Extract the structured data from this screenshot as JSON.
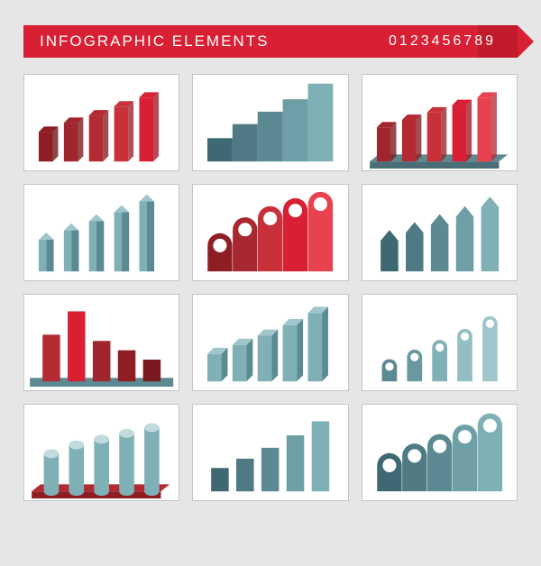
{
  "header": {
    "title": "INFOGRAPHIC ELEMENTS",
    "digits": "0123456789",
    "ribbon_color": "#d91f33"
  },
  "background_color": "#e6e6e6",
  "panel_border": "#c4c4c4",
  "palette": {
    "red_dark": "#8f1d24",
    "red_mid": "#b42a32",
    "red": "#d91f33",
    "red_light": "#e8424f",
    "teal_dark": "#3e6872",
    "teal_mid": "#5b8a92",
    "teal": "#7fb0b6",
    "teal_light": "#a0c6cb",
    "teal_pale": "#c0dade"
  },
  "panels": [
    {
      "id": "p1",
      "type": "bar-3d-red",
      "values": [
        40,
        52,
        62,
        74,
        86
      ],
      "colors": [
        "#8f1d24",
        "#a0252c",
        "#b42a32",
        "#c9313a",
        "#d91f33"
      ],
      "side_tint": "rgba(0,0,0,0.18)"
    },
    {
      "id": "p2",
      "type": "bar-stairs",
      "values": [
        30,
        48,
        64,
        80,
        100
      ],
      "colors": [
        "#3e6872",
        "#4f7a83",
        "#5b8a92",
        "#6f9fa6",
        "#7fb0b6"
      ]
    },
    {
      "id": "p3",
      "type": "bar-3d-red-platform",
      "values": [
        46,
        56,
        66,
        76,
        86
      ],
      "colors": [
        "#a0252c",
        "#b42a32",
        "#c9313a",
        "#d91f33",
        "#e8424f"
      ],
      "platform_color": "#5b8a92"
    },
    {
      "id": "p4",
      "type": "bar-prism-teal",
      "values": [
        42,
        54,
        66,
        78,
        92
      ],
      "front": "#7fb0b6",
      "side": "#5b8a92",
      "top": "#a0c6cb"
    },
    {
      "id": "p5",
      "type": "pin-arch",
      "values": [
        48,
        68,
        82,
        92,
        100
      ],
      "colors": [
        "#8f1d24",
        "#a72830",
        "#c9313a",
        "#d91f33",
        "#e8424f"
      ],
      "circle_fill": "#ffffff"
    },
    {
      "id": "p6",
      "type": "bar-arrow-teal",
      "values": [
        52,
        62,
        72,
        82,
        94
      ],
      "colors": [
        "#3e6872",
        "#4f7a83",
        "#5b8a92",
        "#6f9fa6",
        "#7fb0b6"
      ]
    },
    {
      "id": "p7",
      "type": "bar-flat",
      "values": [
        60,
        90,
        52,
        40,
        28
      ],
      "colors": [
        "#b42a32",
        "#d91f33",
        "#a0252c",
        "#8f1d24",
        "#7a1a20"
      ],
      "platform_color": "#5b8a92"
    },
    {
      "id": "p8",
      "type": "bar-3d-teal",
      "values": [
        36,
        48,
        60,
        74,
        90
      ],
      "front": "#7fb0b6",
      "side": "#5b8a92",
      "top": "#a0c6cb"
    },
    {
      "id": "p9",
      "type": "pin-round",
      "values": [
        28,
        40,
        52,
        66,
        82
      ],
      "colors": [
        "#5b8a92",
        "#6a98a0",
        "#7fb0b6",
        "#93bfc4",
        "#a0c6cb"
      ],
      "circle_fill": "#ffffff"
    },
    {
      "id": "p10",
      "type": "cylinder",
      "values": [
        52,
        64,
        72,
        80,
        88
      ],
      "body": "#7fb0b6",
      "top": "#c0dade",
      "platform_color": "#b42a32"
    },
    {
      "id": "p11",
      "type": "bar-flat",
      "values": [
        30,
        42,
        56,
        72,
        90
      ],
      "colors": [
        "#3e6872",
        "#4f7a83",
        "#5b8a92",
        "#6f9fa6",
        "#7fb0b6"
      ]
    },
    {
      "id": "p12",
      "type": "arch",
      "values": [
        48,
        60,
        72,
        84,
        98
      ],
      "colors": [
        "#3e6872",
        "#4f7a83",
        "#5b8a92",
        "#6f9fa6",
        "#7fb0b6"
      ],
      "circle_fill": "#ffffff"
    }
  ]
}
